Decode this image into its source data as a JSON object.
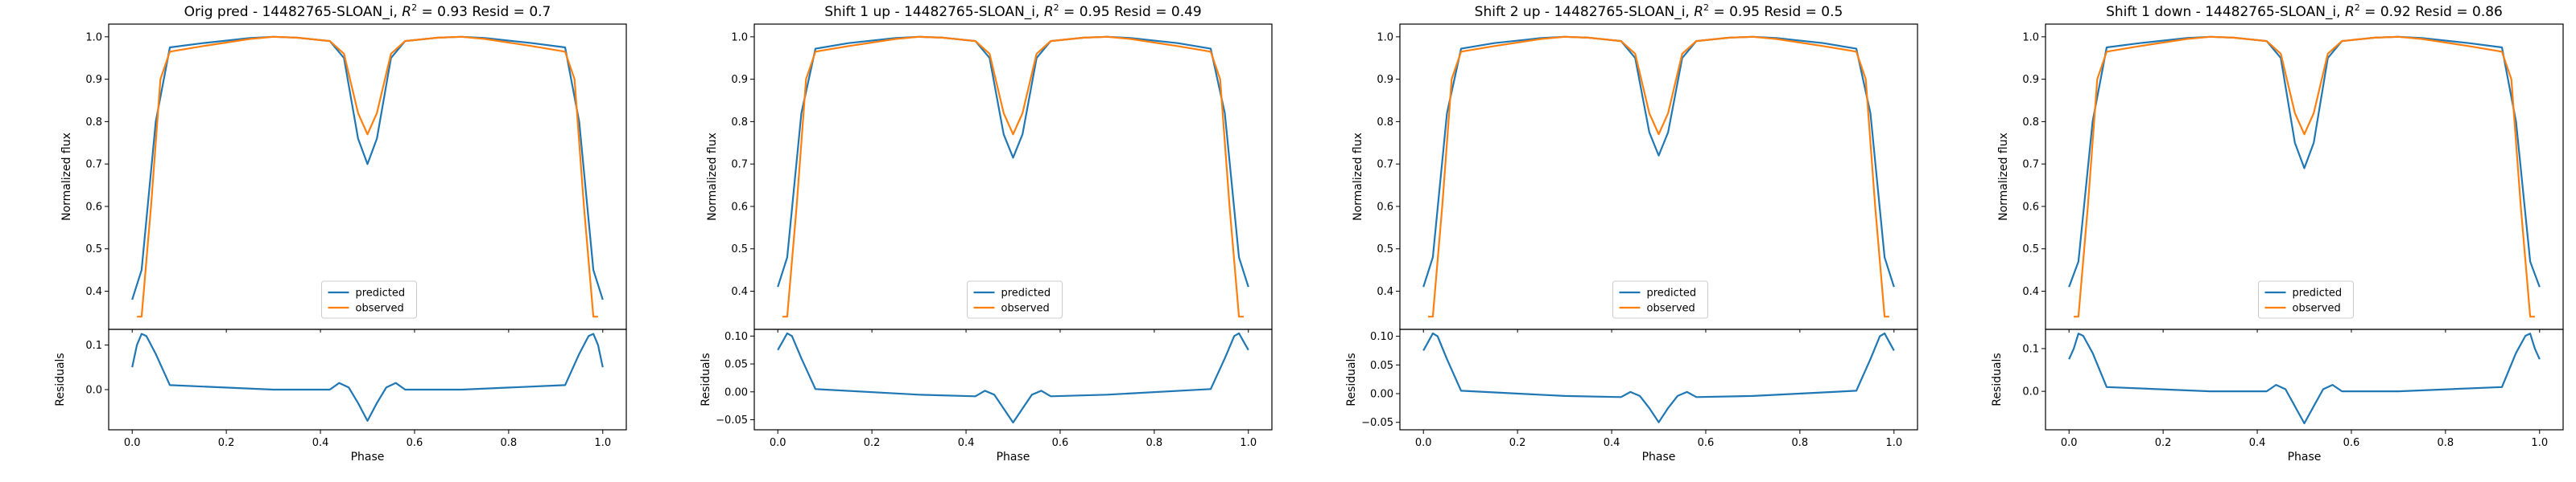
{
  "colors": {
    "predicted": "#1f77b4",
    "observed": "#ff7f0e"
  },
  "chart_data": [
    {
      "type": "line",
      "title": "Orig pred - 14482765-SLOAN_i, $R^2 = 0.93$ Resid = 0.7",
      "title_parts": [
        "Orig pred - 14482765-SLOAN_i, ",
        "R",
        "2",
        " = 0.93 Resid = 0.7"
      ],
      "xlabel": "Phase",
      "ylabel": "Normalized flux",
      "resid_ylabel": "Residuals",
      "xlim": [
        -0.05,
        1.05
      ],
      "ylim": [
        0.31,
        1.03
      ],
      "xticks": [
        0.0,
        0.2,
        0.4,
        0.6,
        0.8,
        1.0
      ],
      "xtick_labels": [
        "0.0",
        "0.2",
        "0.4",
        "0.6",
        "0.8",
        "1.0"
      ],
      "yticks": [
        0.4,
        0.5,
        0.6,
        0.7,
        0.8,
        0.9,
        1.0
      ],
      "ytick_labels": [
        "0.4",
        "0.5",
        "0.6",
        "0.7",
        "0.8",
        "0.9",
        "1.0"
      ],
      "resid_ylim": [
        -0.09,
        0.135
      ],
      "resid_yticks": [
        0.0,
        0.1
      ],
      "resid_ytick_labels": [
        "0.0",
        "0.1"
      ],
      "legend": [
        "predicted",
        "observed"
      ],
      "legend_position": "lower center",
      "series": [
        {
          "name": "predicted",
          "x": [
            0.0,
            0.02,
            0.05,
            0.08,
            0.15,
            0.25,
            0.3,
            0.35,
            0.42,
            0.45,
            0.48,
            0.5,
            0.52,
            0.55,
            0.58,
            0.65,
            0.7,
            0.75,
            0.85,
            0.92,
            0.95,
            0.98,
            1.0
          ],
          "y": [
            0.38,
            0.45,
            0.8,
            0.975,
            0.985,
            0.997,
            1.0,
            0.998,
            0.99,
            0.95,
            0.76,
            0.7,
            0.76,
            0.95,
            0.99,
            0.998,
            1.0,
            0.997,
            0.985,
            0.975,
            0.8,
            0.45,
            0.38
          ]
        },
        {
          "name": "observed",
          "x": [
            0.01,
            0.02,
            0.04,
            0.06,
            0.08,
            0.15,
            0.25,
            0.3,
            0.35,
            0.42,
            0.45,
            0.48,
            0.5,
            0.52,
            0.55,
            0.58,
            0.65,
            0.7,
            0.75,
            0.85,
            0.92,
            0.94,
            0.96,
            0.98,
            0.99
          ],
          "y": [
            0.34,
            0.34,
            0.6,
            0.9,
            0.965,
            0.978,
            0.995,
            1.0,
            0.998,
            0.99,
            0.96,
            0.82,
            0.77,
            0.82,
            0.96,
            0.99,
            0.998,
            1.0,
            0.995,
            0.978,
            0.965,
            0.9,
            0.6,
            0.34,
            0.34
          ]
        }
      ],
      "residuals": {
        "name": "residuals",
        "x": [
          0.0,
          0.01,
          0.02,
          0.03,
          0.05,
          0.08,
          0.3,
          0.42,
          0.44,
          0.46,
          0.48,
          0.5,
          0.52,
          0.54,
          0.56,
          0.58,
          0.7,
          0.92,
          0.95,
          0.97,
          0.98,
          0.99,
          1.0
        ],
        "y": [
          0.05,
          0.1,
          0.125,
          0.12,
          0.08,
          0.01,
          0.0,
          0.0,
          0.015,
          0.005,
          -0.03,
          -0.07,
          -0.03,
          0.005,
          0.015,
          0.0,
          0.0,
          0.01,
          0.08,
          0.12,
          0.125,
          0.1,
          0.05
        ]
      }
    },
    {
      "type": "line",
      "title": "Shift 1 up - 14482765-SLOAN_i, $R^2 = 0.95$ Resid = 0.49",
      "title_parts": [
        "Shift 1 up - 14482765-SLOAN_i, ",
        "R",
        "2",
        " = 0.95 Resid = 0.49"
      ],
      "xlabel": "Phase",
      "ylabel": "Normalized flux",
      "resid_ylabel": "Residuals",
      "xlim": [
        -0.05,
        1.05
      ],
      "ylim": [
        0.31,
        1.03
      ],
      "xticks": [
        0.0,
        0.2,
        0.4,
        0.6,
        0.8,
        1.0
      ],
      "xtick_labels": [
        "0.0",
        "0.2",
        "0.4",
        "0.6",
        "0.8",
        "1.0"
      ],
      "yticks": [
        0.4,
        0.5,
        0.6,
        0.7,
        0.8,
        0.9,
        1.0
      ],
      "ytick_labels": [
        "0.4",
        "0.5",
        "0.6",
        "0.7",
        "0.8",
        "0.9",
        "1.0"
      ],
      "resid_ylim": [
        -0.068,
        0.112
      ],
      "resid_yticks": [
        -0.05,
        0.0,
        0.05,
        0.1
      ],
      "resid_ytick_labels": [
        "−0.05",
        "0.00",
        "0.05",
        "0.10"
      ],
      "legend": [
        "predicted",
        "observed"
      ],
      "legend_position": "lower center",
      "series": [
        {
          "name": "predicted",
          "x": [
            0.0,
            0.02,
            0.05,
            0.08,
            0.15,
            0.25,
            0.3,
            0.35,
            0.42,
            0.45,
            0.48,
            0.5,
            0.52,
            0.55,
            0.58,
            0.65,
            0.7,
            0.75,
            0.85,
            0.92,
            0.95,
            0.98,
            1.0
          ],
          "y": [
            0.41,
            0.48,
            0.82,
            0.972,
            0.985,
            0.997,
            1.0,
            0.998,
            0.99,
            0.95,
            0.77,
            0.715,
            0.77,
            0.95,
            0.99,
            0.998,
            1.0,
            0.997,
            0.985,
            0.972,
            0.82,
            0.48,
            0.41
          ]
        },
        {
          "name": "observed",
          "x": [
            0.01,
            0.02,
            0.04,
            0.06,
            0.08,
            0.15,
            0.25,
            0.3,
            0.35,
            0.42,
            0.45,
            0.48,
            0.5,
            0.52,
            0.55,
            0.58,
            0.65,
            0.7,
            0.75,
            0.85,
            0.92,
            0.94,
            0.96,
            0.98,
            0.99
          ],
          "y": [
            0.34,
            0.34,
            0.6,
            0.9,
            0.965,
            0.978,
            0.995,
            1.0,
            0.998,
            0.99,
            0.96,
            0.82,
            0.77,
            0.82,
            0.96,
            0.99,
            0.998,
            1.0,
            0.995,
            0.978,
            0.965,
            0.9,
            0.6,
            0.34,
            0.34
          ]
        }
      ],
      "residuals": {
        "name": "residuals",
        "x": [
          0.0,
          0.01,
          0.02,
          0.03,
          0.05,
          0.08,
          0.3,
          0.42,
          0.44,
          0.46,
          0.48,
          0.5,
          0.52,
          0.54,
          0.56,
          0.58,
          0.7,
          0.92,
          0.95,
          0.97,
          0.98,
          0.99,
          1.0
        ],
        "y": [
          0.075,
          0.09,
          0.105,
          0.1,
          0.06,
          0.005,
          -0.005,
          -0.008,
          0.002,
          -0.005,
          -0.03,
          -0.055,
          -0.03,
          -0.005,
          0.002,
          -0.008,
          -0.005,
          0.005,
          0.06,
          0.1,
          0.105,
          0.09,
          0.075
        ]
      }
    },
    {
      "type": "line",
      "title": "Shift 2 up - 14482765-SLOAN_i, $R^2 = 0.95$ Resid = 0.5",
      "title_parts": [
        "Shift 2 up - 14482765-SLOAN_i, ",
        "R",
        "2",
        " = 0.95 Resid = 0.5"
      ],
      "xlabel": "Phase",
      "ylabel": "Normalized flux",
      "resid_ylabel": "Residuals",
      "xlim": [
        -0.05,
        1.05
      ],
      "ylim": [
        0.31,
        1.03
      ],
      "xticks": [
        0.0,
        0.2,
        0.4,
        0.6,
        0.8,
        1.0
      ],
      "xtick_labels": [
        "0.0",
        "0.2",
        "0.4",
        "0.6",
        "0.8",
        "1.0"
      ],
      "yticks": [
        0.4,
        0.5,
        0.6,
        0.7,
        0.8,
        0.9,
        1.0
      ],
      "ytick_labels": [
        "0.4",
        "0.5",
        "0.6",
        "0.7",
        "0.8",
        "0.9",
        "1.0"
      ],
      "resid_ylim": [
        -0.063,
        0.112
      ],
      "resid_yticks": [
        -0.05,
        0.0,
        0.05,
        0.1
      ],
      "resid_ytick_labels": [
        "−0.05",
        "0.00",
        "0.05",
        "0.10"
      ],
      "legend": [
        "predicted",
        "observed"
      ],
      "legend_position": "lower center",
      "series": [
        {
          "name": "predicted",
          "x": [
            0.0,
            0.02,
            0.05,
            0.08,
            0.15,
            0.25,
            0.3,
            0.35,
            0.42,
            0.45,
            0.48,
            0.5,
            0.52,
            0.55,
            0.58,
            0.65,
            0.7,
            0.75,
            0.85,
            0.92,
            0.95,
            0.98,
            1.0
          ],
          "y": [
            0.41,
            0.48,
            0.82,
            0.972,
            0.985,
            0.997,
            1.0,
            0.998,
            0.99,
            0.95,
            0.775,
            0.72,
            0.775,
            0.95,
            0.99,
            0.998,
            1.0,
            0.997,
            0.985,
            0.972,
            0.82,
            0.48,
            0.41
          ]
        },
        {
          "name": "observed",
          "x": [
            0.01,
            0.02,
            0.04,
            0.06,
            0.08,
            0.15,
            0.25,
            0.3,
            0.35,
            0.42,
            0.45,
            0.48,
            0.5,
            0.52,
            0.55,
            0.58,
            0.65,
            0.7,
            0.75,
            0.85,
            0.92,
            0.94,
            0.96,
            0.98,
            0.99
          ],
          "y": [
            0.34,
            0.34,
            0.6,
            0.9,
            0.965,
            0.978,
            0.995,
            1.0,
            0.998,
            0.99,
            0.96,
            0.82,
            0.77,
            0.82,
            0.96,
            0.99,
            0.998,
            1.0,
            0.995,
            0.978,
            0.965,
            0.9,
            0.6,
            0.34,
            0.34
          ]
        }
      ],
      "residuals": {
        "name": "residuals",
        "x": [
          0.0,
          0.01,
          0.02,
          0.03,
          0.05,
          0.08,
          0.3,
          0.42,
          0.44,
          0.46,
          0.48,
          0.5,
          0.52,
          0.54,
          0.56,
          0.58,
          0.7,
          0.92,
          0.95,
          0.97,
          0.98,
          0.99,
          1.0
        ],
        "y": [
          0.075,
          0.09,
          0.105,
          0.1,
          0.06,
          0.005,
          -0.004,
          -0.006,
          0.003,
          -0.004,
          -0.025,
          -0.05,
          -0.025,
          -0.004,
          0.003,
          -0.006,
          -0.004,
          0.005,
          0.06,
          0.1,
          0.105,
          0.09,
          0.075
        ]
      }
    },
    {
      "type": "line",
      "title": "Shift 1 down - 14482765-SLOAN_i, $R^2 = 0.92$ Resid = 0.86",
      "title_parts": [
        "Shift 1 down - 14482765-SLOAN_i, ",
        "R",
        "2",
        " = 0.92 Resid = 0.86"
      ],
      "xlabel": "Phase",
      "ylabel": "Normalized flux",
      "resid_ylabel": "Residuals",
      "xlim": [
        -0.05,
        1.05
      ],
      "ylim": [
        0.31,
        1.03
      ],
      "xticks": [
        0.0,
        0.2,
        0.4,
        0.6,
        0.8,
        1.0
      ],
      "xtick_labels": [
        "0.0",
        "0.2",
        "0.4",
        "0.6",
        "0.8",
        "1.0"
      ],
      "yticks": [
        0.4,
        0.5,
        0.6,
        0.7,
        0.8,
        0.9,
        1.0
      ],
      "ytick_labels": [
        "0.4",
        "0.5",
        "0.6",
        "0.7",
        "0.8",
        "0.9",
        "1.0"
      ],
      "resid_ylim": [
        -0.09,
        0.145
      ],
      "resid_yticks": [
        0.0,
        0.1
      ],
      "resid_ytick_labels": [
        "0.0",
        "0.1"
      ],
      "legend": [
        "predicted",
        "observed"
      ],
      "legend_position": "lower center",
      "series": [
        {
          "name": "predicted",
          "x": [
            0.0,
            0.02,
            0.05,
            0.08,
            0.15,
            0.25,
            0.3,
            0.35,
            0.42,
            0.45,
            0.48,
            0.5,
            0.52,
            0.55,
            0.58,
            0.65,
            0.7,
            0.75,
            0.85,
            0.92,
            0.95,
            0.98,
            1.0
          ],
          "y": [
            0.41,
            0.47,
            0.8,
            0.975,
            0.985,
            0.997,
            1.0,
            0.998,
            0.99,
            0.95,
            0.75,
            0.69,
            0.75,
            0.95,
            0.99,
            0.998,
            1.0,
            0.997,
            0.985,
            0.975,
            0.8,
            0.47,
            0.41
          ]
        },
        {
          "name": "observed",
          "x": [
            0.01,
            0.02,
            0.04,
            0.06,
            0.08,
            0.15,
            0.25,
            0.3,
            0.35,
            0.42,
            0.45,
            0.48,
            0.5,
            0.52,
            0.55,
            0.58,
            0.65,
            0.7,
            0.75,
            0.85,
            0.92,
            0.94,
            0.96,
            0.98,
            0.99
          ],
          "y": [
            0.34,
            0.34,
            0.6,
            0.9,
            0.965,
            0.978,
            0.995,
            1.0,
            0.998,
            0.99,
            0.96,
            0.82,
            0.77,
            0.82,
            0.96,
            0.99,
            0.998,
            1.0,
            0.995,
            0.978,
            0.965,
            0.9,
            0.6,
            0.34,
            0.34
          ]
        }
      ],
      "residuals": {
        "name": "residuals",
        "x": [
          0.0,
          0.01,
          0.02,
          0.03,
          0.05,
          0.08,
          0.3,
          0.42,
          0.44,
          0.46,
          0.48,
          0.5,
          0.52,
          0.54,
          0.56,
          0.58,
          0.7,
          0.92,
          0.95,
          0.97,
          0.98,
          0.99,
          1.0
        ],
        "y": [
          0.075,
          0.1,
          0.135,
          0.13,
          0.09,
          0.01,
          0.0,
          0.0,
          0.015,
          0.005,
          -0.035,
          -0.075,
          -0.035,
          0.005,
          0.015,
          0.0,
          0.0,
          0.01,
          0.09,
          0.13,
          0.135,
          0.1,
          0.075
        ]
      }
    }
  ]
}
